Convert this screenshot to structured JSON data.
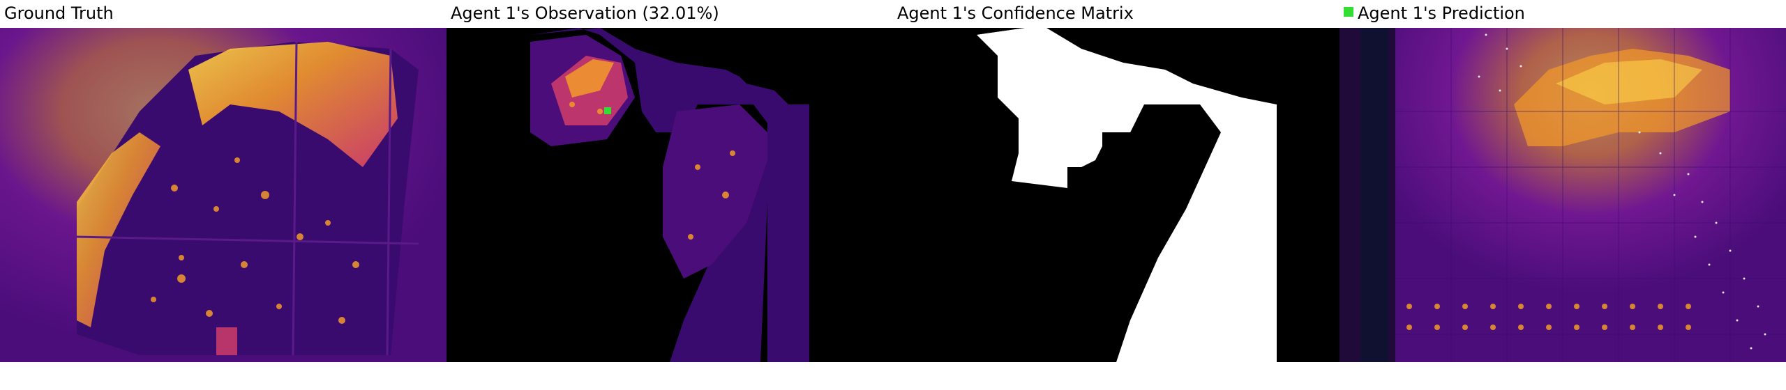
{
  "panels": [
    {
      "title": "Ground Truth"
    },
    {
      "title": "Agent 1's Observation (32.01%)"
    },
    {
      "title": "Agent 1's Confidence Matrix"
    },
    {
      "title": "Agent 1's Prediction"
    }
  ],
  "agent_marker_color": "#33dd33",
  "palette": {
    "background": "#4a0d7a",
    "deep": "#2a0a5a",
    "mid": "#8a1ea0",
    "warm": "#d8406a",
    "hot": "#f39a2a",
    "bright": "#ffd84a",
    "mask": "#000000",
    "confidence": "#ffffff"
  }
}
